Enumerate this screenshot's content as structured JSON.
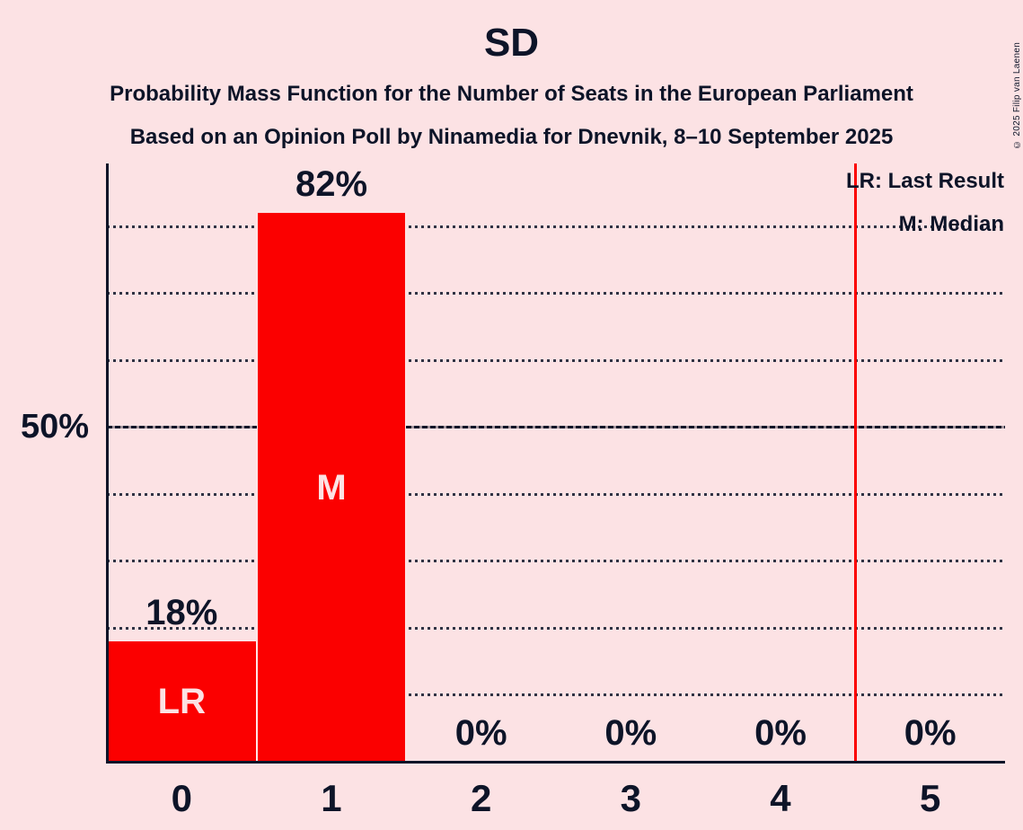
{
  "title": "SD",
  "subtitle1": "Probability Mass Function for the Number of Seats in the European Parliament",
  "subtitle2": "Based on an Opinion Poll by Ninamedia for Dnevnik, 8–10 September 2025",
  "copyright": "© 2025 Filip van Laenen",
  "legend": {
    "lr": "LR: Last Result",
    "m": "M: Median"
  },
  "y_axis": {
    "tick_label": "50%",
    "tick_value": 50
  },
  "colors": {
    "background": "#FCE2E4",
    "bar": "#FB0000",
    "text": "#0D1428",
    "bar_label": "#FCE2E4",
    "lr_line": "#FB0000"
  },
  "chart_data": {
    "type": "bar",
    "title": "SD",
    "categories": [
      "0",
      "1",
      "2",
      "3",
      "4",
      "5"
    ],
    "values": [
      18,
      82,
      0,
      0,
      0,
      0
    ],
    "value_labels": [
      "18%",
      "82%",
      "0%",
      "0%",
      "0%",
      "0%"
    ],
    "bar_annotations": [
      "LR",
      "M",
      "",
      "",
      "",
      ""
    ],
    "median_category": "1",
    "last_result_category": "0",
    "lr_line_x": 4.5,
    "ylim": [
      0,
      89
    ],
    "gridlines_percent": [
      10,
      20,
      30,
      40,
      50,
      60,
      70,
      80
    ],
    "solid_gridline_percent": 50,
    "grid": "dotted",
    "legend_position": "top-right"
  }
}
